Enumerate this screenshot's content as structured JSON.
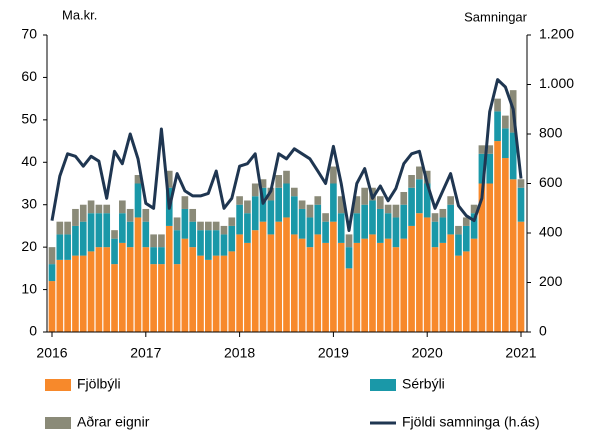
{
  "chart_data": {
    "type": "bar",
    "stacked": true,
    "y_label": "Ma.kr.",
    "y2_label": "Samningar",
    "categories": [
      "2016",
      null,
      null,
      null,
      null,
      null,
      null,
      null,
      null,
      null,
      null,
      null,
      "2017",
      null,
      null,
      null,
      null,
      null,
      null,
      null,
      null,
      null,
      null,
      null,
      "2018",
      null,
      null,
      null,
      null,
      null,
      null,
      null,
      null,
      null,
      null,
      null,
      "2019",
      null,
      null,
      null,
      null,
      null,
      null,
      null,
      null,
      null,
      null,
      null,
      "2020",
      null,
      null,
      null,
      null,
      null,
      null,
      null,
      null,
      null,
      null,
      null,
      "2021"
    ],
    "series": [
      {
        "name": "Fjölbýli",
        "color": "#f7892b",
        "values": [
          12,
          17,
          17,
          18,
          18,
          19,
          20,
          20,
          16,
          21,
          20,
          27,
          20,
          16,
          16,
          25,
          16,
          22,
          20,
          18,
          17,
          18,
          18,
          19,
          23,
          21,
          24,
          26,
          23,
          26,
          27,
          23,
          22,
          20,
          23,
          21,
          26,
          21,
          15,
          21,
          22,
          23,
          21,
          22,
          20,
          22,
          25,
          28,
          27,
          20,
          21,
          23,
          18,
          19,
          22,
          35,
          35,
          45,
          41,
          36,
          26
        ]
      },
      {
        "name": "Sérbýli",
        "color": "#1a98a8",
        "values": [
          4,
          6,
          6,
          7,
          8,
          9,
          8,
          8,
          6,
          7,
          6,
          8,
          6,
          4,
          4,
          9,
          8,
          7,
          6,
          6,
          7,
          6,
          5,
          6,
          7,
          7,
          8,
          8,
          8,
          8,
          8,
          9,
          7,
          7,
          7,
          5,
          9,
          7,
          5,
          7,
          8,
          8,
          8,
          6,
          7,
          8,
          9,
          8,
          8,
          6,
          6,
          7,
          5,
          6,
          6,
          7,
          7,
          7,
          7,
          11,
          8
        ]
      },
      {
        "name": "Aðrar eignir",
        "color": "#8a8a78",
        "values": [
          4,
          3,
          3,
          4,
          4,
          3,
          2,
          2,
          2,
          3,
          3,
          2,
          3,
          3,
          3,
          4,
          3,
          3,
          3,
          2,
          2,
          2,
          2,
          2,
          2,
          3,
          3,
          2,
          3,
          3,
          3,
          2,
          2,
          3,
          2,
          2,
          4,
          4,
          3,
          4,
          4,
          3,
          3,
          2,
          3,
          3,
          3,
          3,
          3,
          2,
          2,
          2,
          2,
          2,
          2,
          2,
          2,
          3,
          3,
          10,
          2
        ]
      },
      {
        "name": "Fjöldi samninga (h.ás)",
        "type": "line",
        "axis": "y2",
        "color": "#1f3651",
        "values": [
          450,
          630,
          720,
          710,
          670,
          710,
          690,
          540,
          730,
          680,
          800,
          700,
          520,
          500,
          820,
          500,
          640,
          570,
          550,
          550,
          560,
          650,
          500,
          540,
          670,
          680,
          720,
          520,
          570,
          720,
          700,
          740,
          720,
          700,
          650,
          600,
          750,
          600,
          410,
          600,
          660,
          540,
          590,
          530,
          580,
          680,
          720,
          730,
          600,
          500,
          570,
          640,
          510,
          470,
          450,
          540,
          890,
          1020,
          990,
          900,
          620
        ]
      }
    ],
    "ylim": [
      0,
      70
    ],
    "yticks": [
      0,
      10,
      20,
      30,
      40,
      50,
      60,
      70
    ],
    "y2lim": [
      0,
      1200
    ],
    "y2ticks": [
      0,
      200,
      400,
      600,
      800,
      {
        "value": 1000,
        "label": "1.000"
      },
      {
        "value": 1200,
        "label": "1.200"
      }
    ]
  }
}
